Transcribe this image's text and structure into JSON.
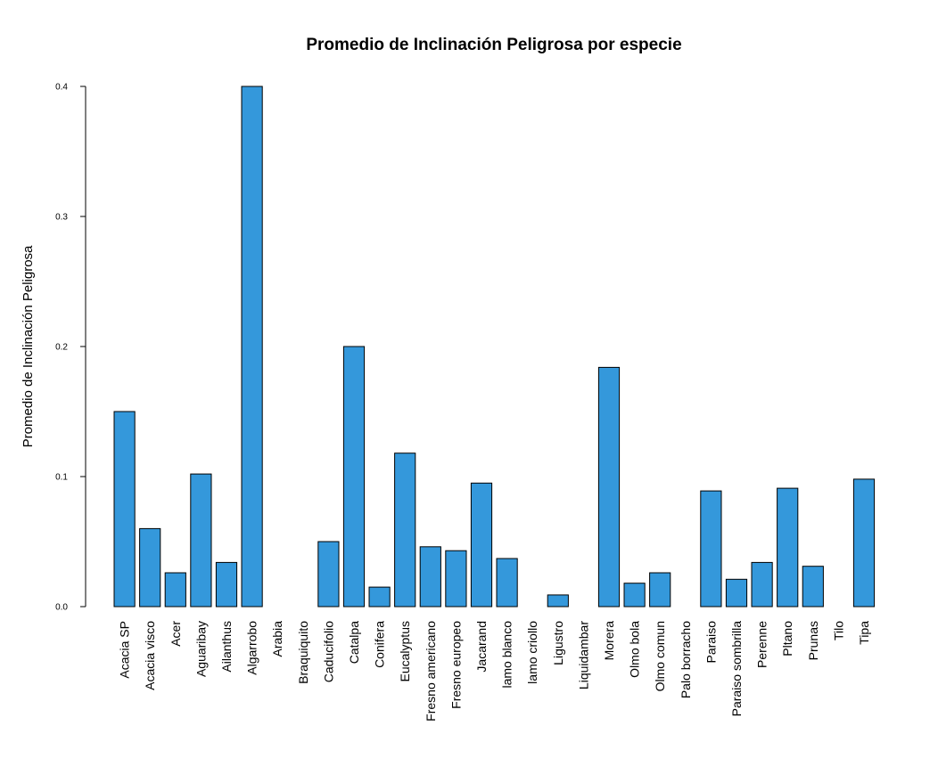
{
  "chart_data": {
    "type": "bar",
    "title": "Promedio de Inclinación Peligrosa por especie",
    "xlabel": "",
    "ylabel": "Promedio de Inclinación Peligrosa",
    "ylim": [
      0,
      0.4
    ],
    "yticks": [
      "0.0",
      "0.1",
      "0.2",
      "0.3",
      "0.4"
    ],
    "bar_color": "#3498db",
    "grid": false,
    "categories": [
      "Acacia SP",
      "Acacia visco",
      "Acer",
      "Aguaribay",
      "Ailanthus",
      "Algarrobo",
      "Arabia",
      "Braquiquito",
      "Caducifolio",
      "Catalpa",
      "Conifera",
      "Eucalyptus",
      "Fresno americano",
      "Fresno europeo",
      "Jacarand",
      "lamo blanco",
      "lamo criollo",
      "Ligustro",
      "Liquidambar",
      "Morera",
      "Olmo bola",
      "Olmo comun",
      "Palo borracho",
      "Paraiso",
      "Paraiso sombrilla",
      "Perenne",
      "Pltano",
      "Prunas",
      "Tilo",
      "Tipa"
    ],
    "values": [
      0.15,
      0.06,
      0.026,
      0.102,
      0.034,
      0.4,
      0.0,
      0.0,
      0.05,
      0.2,
      0.015,
      0.118,
      0.046,
      0.043,
      0.095,
      0.037,
      0.0,
      0.009,
      0.0,
      0.184,
      0.018,
      0.026,
      0.0,
      0.089,
      0.021,
      0.034,
      0.091,
      0.031,
      0.0,
      0.098
    ]
  }
}
